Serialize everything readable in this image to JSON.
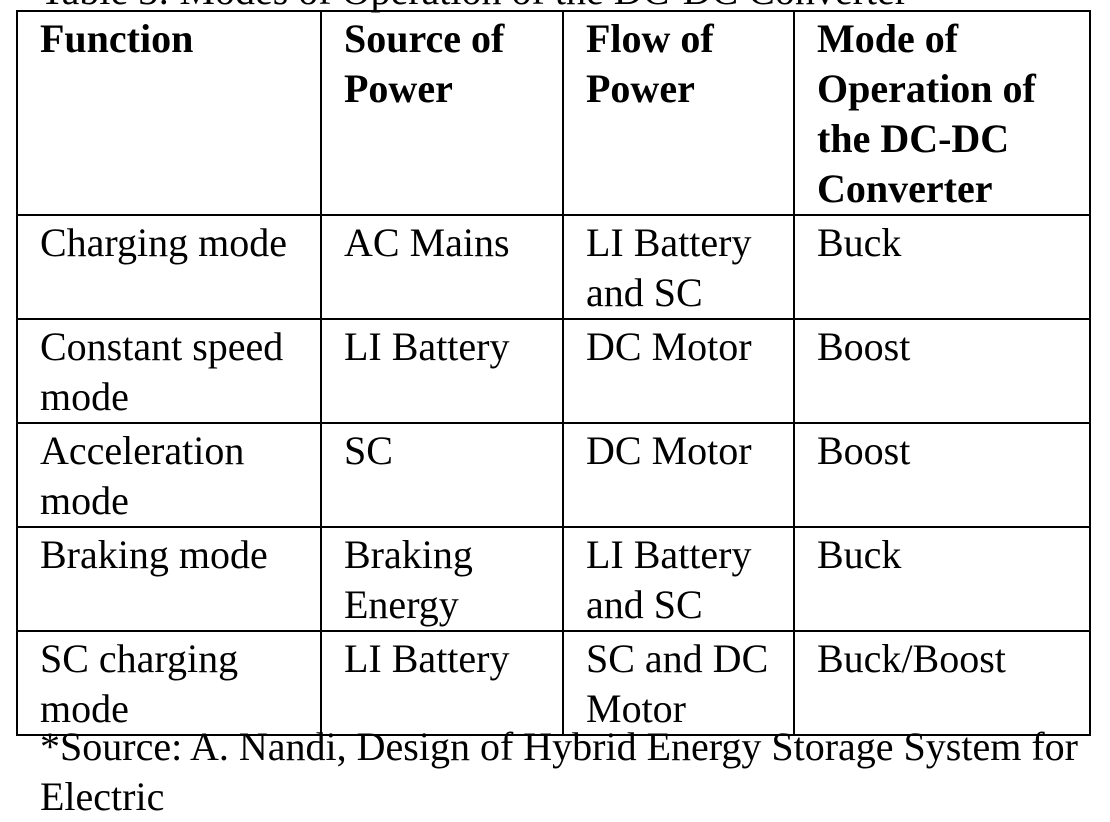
{
  "caption": "Table 3: Modes of Operation of the DC-DC Converter",
  "headers": [
    "Function",
    "Source of Power",
    "Flow of Power",
    "Mode of Operation of the DC-DC Converter"
  ],
  "rows": [
    [
      "Charging mode",
      "AC Mains",
      "LI Battery and SC",
      "Buck"
    ],
    [
      "Constant speed mode",
      "LI Battery",
      "DC Motor",
      "Boost"
    ],
    [
      "Acceleration mode",
      "SC",
      "DC Motor",
      "Boost"
    ],
    [
      "Braking mode",
      "Braking Energy",
      "LI Battery and SC",
      "Buck"
    ],
    [
      "SC charging mode",
      "LI Battery",
      "SC and DC Motor",
      "Buck/Boost"
    ]
  ],
  "footnote": "*Source: A. Nandi, Design of Hybrid Energy Storage System for Electric"
}
